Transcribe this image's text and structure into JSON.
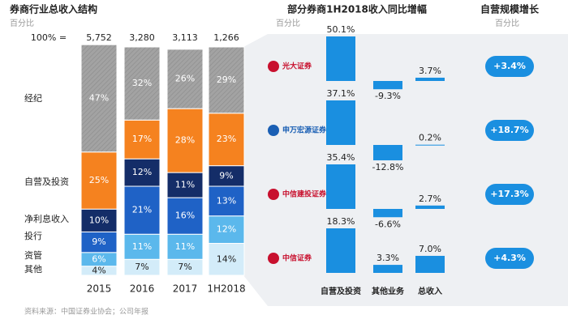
{
  "chart_data": [
    {
      "type": "stacked_bar",
      "title": "券商行业总收入结构",
      "subtitle": "百分比",
      "categories": [
        "2015",
        "2016",
        "2017",
        "1H2018"
      ],
      "totals": {
        "label": "100% =",
        "values": [
          5752,
          3280,
          3113,
          1266
        ],
        "value_labels": [
          "5,752",
          "3,280",
          "3,113",
          "1,266"
        ]
      },
      "series": [
        {
          "name": "其他",
          "color": "#d3ecf9",
          "values": [
            4,
            7,
            7,
            14
          ],
          "value_labels": [
            "4%",
            "7%",
            "7%",
            "14%"
          ]
        },
        {
          "name": "资管",
          "color": "#5bb8ec",
          "values": [
            6,
            11,
            11,
            12
          ],
          "value_labels": [
            "6%",
            "11%",
            "11%",
            "12%"
          ]
        },
        {
          "name": "投行",
          "color": "#1f62c6",
          "values": [
            9,
            21,
            16,
            13
          ],
          "value_labels": [
            "9%",
            "21%",
            "16%",
            "13%"
          ]
        },
        {
          "name": "净利息收入",
          "color": "#142d68",
          "values": [
            10,
            12,
            11,
            9
          ],
          "value_labels": [
            "10%",
            "12%",
            "11%",
            "9%"
          ]
        },
        {
          "name": "自营及投资",
          "color": "#f5821f",
          "values": [
            25,
            17,
            28,
            23
          ],
          "value_labels": [
            "25%",
            "17%",
            "28%",
            "23%"
          ]
        },
        {
          "name": "经纪",
          "color": "#a3a3a3",
          "values": [
            47,
            32,
            26,
            29
          ],
          "value_labels": [
            "47%",
            "32%",
            "26%",
            "29%"
          ]
        }
      ]
    },
    {
      "type": "panel_bar",
      "title": "部分券商1H2018收入同比增幅",
      "subtitle": "百分比",
      "color": "#1a8fe0",
      "categories": [
        "自营及投资",
        "其他业务",
        "总收入"
      ],
      "panels": [
        {
          "name": "光大证券",
          "values": [
            50.1,
            -9.3,
            3.7
          ],
          "value_labels": [
            "50.1%",
            "-9.3%",
            "3.7%"
          ]
        },
        {
          "name": "申万宏源证券",
          "values": [
            37.1,
            -12.8,
            0.2
          ],
          "value_labels": [
            "37.1%",
            "-12.8%",
            "0.2%"
          ]
        },
        {
          "name": "中信建投证券",
          "values": [
            35.4,
            -6.6,
            2.7
          ],
          "value_labels": [
            "35.4%",
            "-6.6%",
            "2.7%"
          ]
        },
        {
          "name": "中信证券",
          "values": [
            18.3,
            3.3,
            7.0
          ],
          "value_labels": [
            "18.3%",
            "3.3%",
            "7.0%"
          ]
        }
      ]
    },
    {
      "type": "badge",
      "title": "自营规模增长",
      "subtitle": "百分比",
      "color": "#1a8fe0",
      "values": [
        3.4,
        18.7,
        17.3,
        4.3
      ],
      "value_labels": [
        "+3.4%",
        "+18.7%",
        "+17.3%",
        "+4.3%"
      ]
    }
  ],
  "source": "资料来源：中国证券业协会；公司年报"
}
